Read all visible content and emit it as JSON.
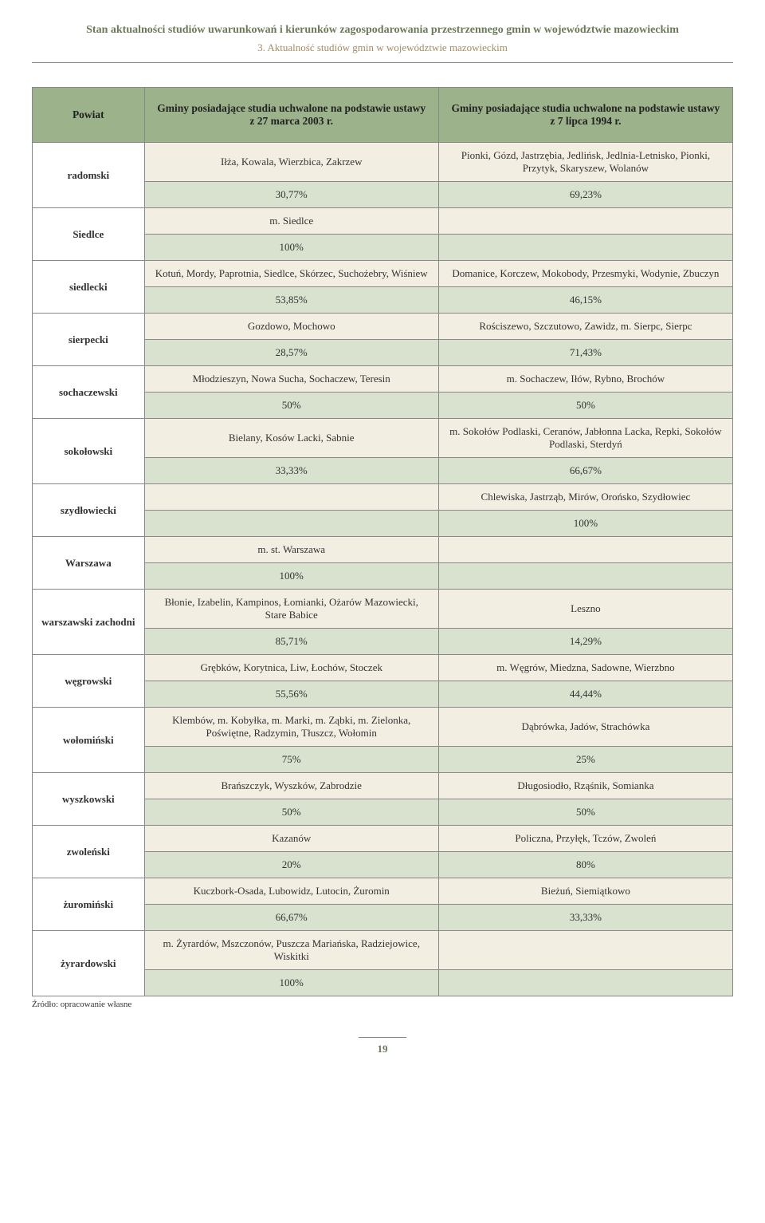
{
  "header": {
    "title": "Stan aktualności studiów uwarunkowań i kierunków zagospodarowania przestrzennego gmin w województwie mazowieckim",
    "subtitle": "3. Aktualność studiów gmin w województwie mazowieckim"
  },
  "columns": {
    "powiat": "Powiat",
    "left": "Gminy posiadające studia uchwalone na podstawie ustawy z 27 marca 2003 r.",
    "right": "Gminy posiadające studia uchwalone na podstawie ustawy z 7 lipca 1994 r."
  },
  "rows": [
    {
      "powiat": "radomski",
      "r1l": "Iłża, Kowala, Wierzbica, Zakrzew",
      "r1r": "Pionki, Gózd, Jastrzębia, Jedlińsk, Jedlnia-Letnisko, Pionki, Przytyk, Skaryszew, Wolanów",
      "r2l": "30,77%",
      "r2r": "69,23%"
    },
    {
      "powiat": "Siedlce",
      "r1l": "m. Siedlce",
      "r1r": "",
      "r2l": "100%",
      "r2r": ""
    },
    {
      "powiat": "siedlecki",
      "r1l": "Kotuń, Mordy, Paprotnia, Siedlce, Skórzec, Suchożebry, Wiśniew",
      "r1r": "Domanice, Korczew, Mokobody, Przesmyki, Wodynie, Zbuczyn",
      "r2l": "53,85%",
      "r2r": "46,15%"
    },
    {
      "powiat": "sierpecki",
      "r1l": "Gozdowo, Mochowo",
      "r1r": "Rościszewo, Szczutowo, Zawidz, m. Sierpc, Sierpc",
      "r2l": "28,57%",
      "r2r": "71,43%"
    },
    {
      "powiat": "sochaczewski",
      "r1l": "Młodzieszyn, Nowa Sucha, Sochaczew, Teresin",
      "r1r": "m. Sochaczew, Iłów, Rybno, Brochów",
      "r2l": "50%",
      "r2r": "50%"
    },
    {
      "powiat": "sokołowski",
      "r1l": "Bielany, Kosów Lacki, Sabnie",
      "r1r": "m. Sokołów Podlaski, Ceranów, Jabłonna Lacka, Repki, Sokołów Podlaski, Sterdyń",
      "r2l": "33,33%",
      "r2r": "66,67%"
    },
    {
      "powiat": "szydłowiecki",
      "r1l": "",
      "r1r": "Chlewiska, Jastrząb, Mirów, Orońsko, Szydłowiec",
      "r2l": "",
      "r2r": "100%"
    },
    {
      "powiat": "Warszawa",
      "r1l": "m. st. Warszawa",
      "r1r": "",
      "r2l": "100%",
      "r2r": ""
    },
    {
      "powiat": "warszawski zachodni",
      "r1l": "Błonie, Izabelin, Kampinos, Łomianki, Ożarów Mazowiecki, Stare Babice",
      "r1r": "Leszno",
      "r2l": "85,71%",
      "r2r": "14,29%"
    },
    {
      "powiat": "węgrowski",
      "r1l": "Grębków, Korytnica, Liw, Łochów, Stoczek",
      "r1r": "m. Węgrów, Miedzna, Sadowne, Wierzbno",
      "r2l": "55,56%",
      "r2r": "44,44%"
    },
    {
      "powiat": "wołomiński",
      "r1l": "Klembów, m. Kobyłka, m. Marki, m. Ząbki, m. Zielonka, Poświętne, Radzymin, Tłuszcz, Wołomin",
      "r1r": "Dąbrówka, Jadów, Strachówka",
      "r2l": "75%",
      "r2r": "25%"
    },
    {
      "powiat": "wyszkowski",
      "r1l": "Brańszczyk, Wyszków, Zabrodzie",
      "r1r": "Długosiodło, Rząśnik, Somianka",
      "r2l": "50%",
      "r2r": "50%"
    },
    {
      "powiat": "zwoleński",
      "r1l": "Kazanów",
      "r1r": "Policzna, Przyłęk, Tczów, Zwoleń",
      "r2l": "20%",
      "r2r": "80%"
    },
    {
      "powiat": "żuromiński",
      "r1l": "Kuczbork-Osada, Lubowidz, Lutocin, Żuromin",
      "r1r": "Bieżuń, Siemiątkowo",
      "r2l": "66,67%",
      "r2r": "33,33%"
    },
    {
      "powiat": "żyrardowski",
      "r1l": "m. Żyrardów, Mszczonów, Puszcza Mariańska, Radziejowice, Wiskitki",
      "r1r": "",
      "r2l": "100%",
      "r2r": ""
    }
  ],
  "source": "Źródło: opracowanie własne",
  "page": "19",
  "colors": {
    "header_bg": "#9cb28a",
    "cream_bg": "#f2eee1",
    "green_bg": "#d9e2ce",
    "border": "#888888",
    "title": "#6a7a58",
    "subtitle": "#a38b5f"
  }
}
